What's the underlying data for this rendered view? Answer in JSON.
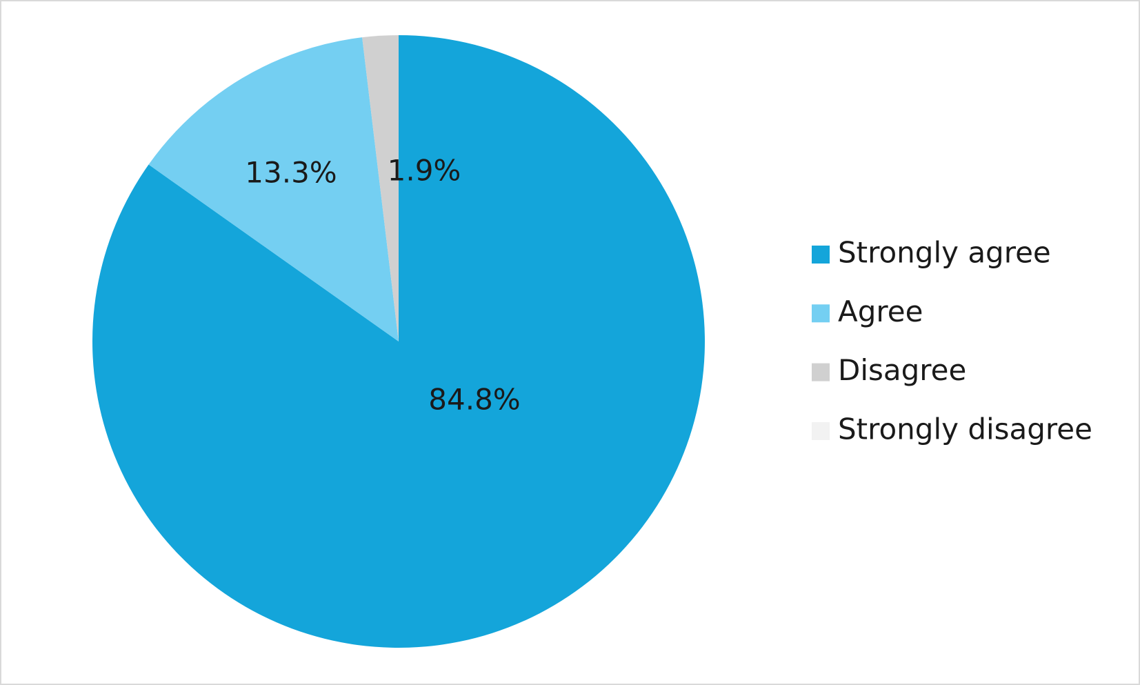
{
  "chart_data": {
    "type": "pie",
    "categories": [
      "Strongly agree",
      "Agree",
      "Disagree",
      "Strongly disagree"
    ],
    "values": [
      84.8,
      13.3,
      1.9,
      0
    ],
    "value_labels": [
      "84.8%",
      "13.3%",
      "1.9%",
      null
    ],
    "colors": [
      "#14a5da",
      "#74cff2",
      "#d0d0d0",
      "#f2f2f2"
    ],
    "legend": "right"
  }
}
